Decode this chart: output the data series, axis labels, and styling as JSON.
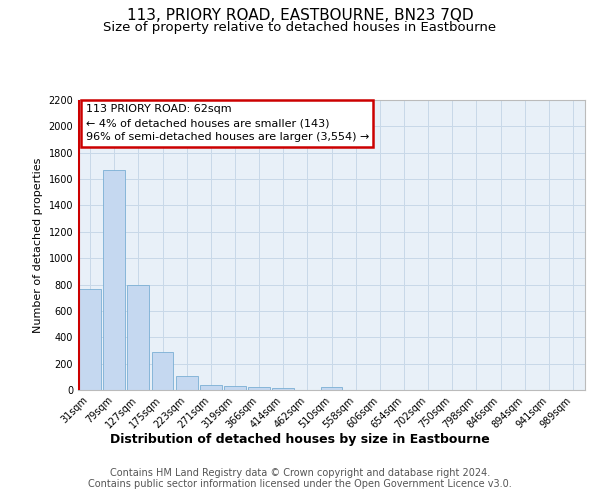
{
  "title": "113, PRIORY ROAD, EASTBOURNE, BN23 7QD",
  "subtitle": "Size of property relative to detached houses in Eastbourne",
  "xlabel": "Distribution of detached houses by size in Eastbourne",
  "ylabel": "Number of detached properties",
  "categories": [
    "31sqm",
    "79sqm",
    "127sqm",
    "175sqm",
    "223sqm",
    "271sqm",
    "319sqm",
    "366sqm",
    "414sqm",
    "462sqm",
    "510sqm",
    "558sqm",
    "606sqm",
    "654sqm",
    "702sqm",
    "750sqm",
    "798sqm",
    "846sqm",
    "894sqm",
    "941sqm",
    "989sqm"
  ],
  "values": [
    770,
    1670,
    800,
    290,
    105,
    38,
    28,
    20,
    17,
    0,
    20,
    0,
    0,
    0,
    0,
    0,
    0,
    0,
    0,
    0,
    0
  ],
  "bar_color": "#c5d8f0",
  "bar_edge_color": "#7bafd4",
  "grid_color": "#c8d8e8",
  "axes_bg_color": "#e8f0f8",
  "annotation_text": "113 PRIORY ROAD: 62sqm\n← 4% of detached houses are smaller (143)\n96% of semi-detached houses are larger (3,554) →",
  "annotation_box_facecolor": "#ffffff",
  "annotation_box_edgecolor": "#cc0000",
  "red_line_x": -0.45,
  "ylim": [
    0,
    2200
  ],
  "yticks": [
    0,
    200,
    400,
    600,
    800,
    1000,
    1200,
    1400,
    1600,
    1800,
    2000,
    2200
  ],
  "footer_text": "Contains HM Land Registry data © Crown copyright and database right 2024.\nContains public sector information licensed under the Open Government Licence v3.0.",
  "title_fontsize": 11,
  "subtitle_fontsize": 9.5,
  "xlabel_fontsize": 9,
  "ylabel_fontsize": 8,
  "tick_fontsize": 7,
  "annotation_fontsize": 8,
  "footer_fontsize": 7
}
